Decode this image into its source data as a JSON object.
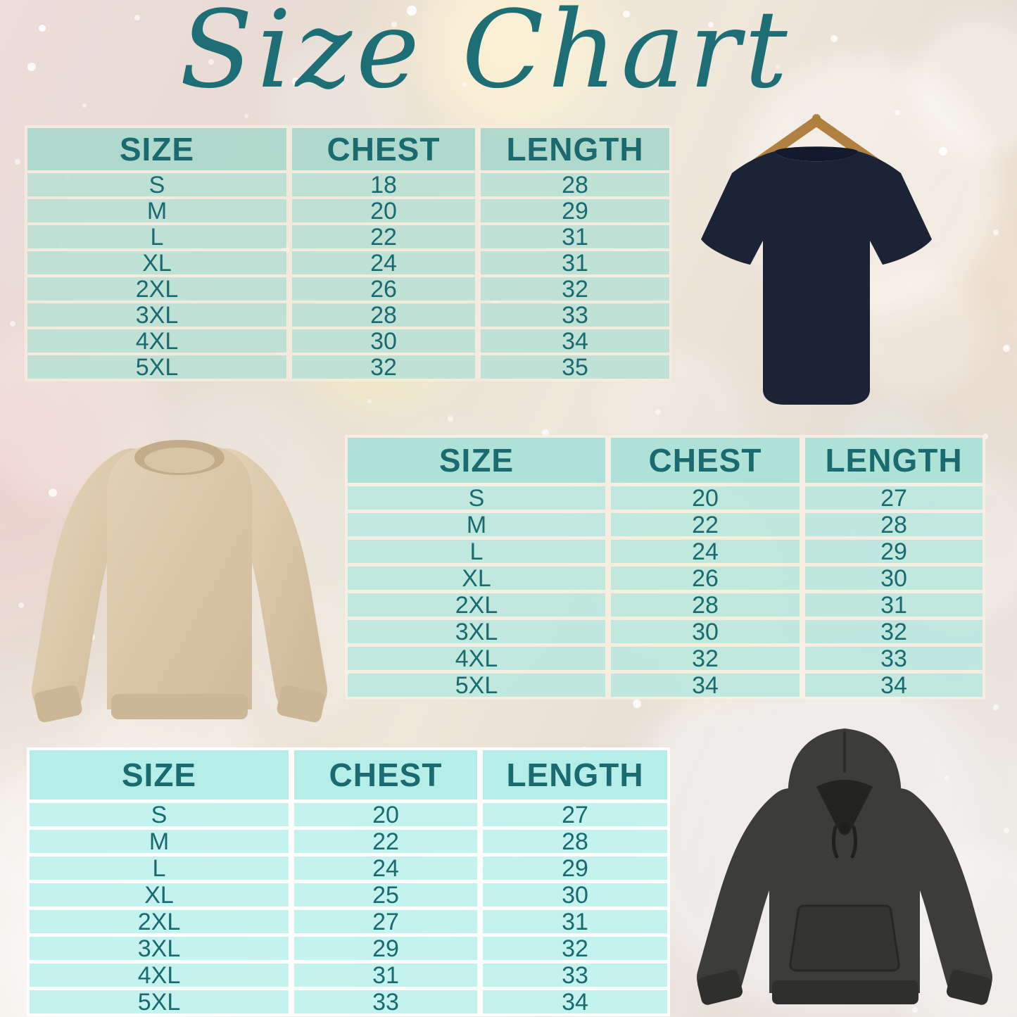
{
  "title": "Size Chart",
  "colors": {
    "accent-teal": "#1E6F75",
    "table-text": "#1A6A70",
    "t1-header-bg": "rgba(158,213,199,0.80)",
    "t1-row-bg": "rgba(167,219,209,0.68)",
    "t2-header-bg": "rgba(156,222,214,0.80)",
    "t2-row-bg": "rgba(170,228,221,0.72)",
    "t3-header-bg": "rgba(173,235,231,0.90)",
    "t3-row-bg": "rgba(192,241,238,0.95)",
    "tshirt-navy": "#1C2335",
    "tshirt-collar": "#121A2B",
    "hanger-wood": "#B08040",
    "sweatshirt-tan": "#D8C5A6",
    "sweatshirt-rib": "#CBB695",
    "sweatshirt-collar": "#C2AC8A",
    "hoodie-charcoal": "#3C3C3A",
    "hoodie-dark": "#2F2F2D",
    "hoodie-opening": "#232321"
  },
  "tables": [
    {
      "columns": [
        "SIZE",
        "CHEST",
        "LENGTH"
      ],
      "rows": [
        [
          "S",
          "18",
          "28"
        ],
        [
          "M",
          "20",
          "29"
        ],
        [
          "L",
          "22",
          "31"
        ],
        [
          "XL",
          "24",
          "31"
        ],
        [
          "2XL",
          "26",
          "32"
        ],
        [
          "3XL",
          "28",
          "33"
        ],
        [
          "4XL",
          "30",
          "34"
        ],
        [
          "5XL",
          "32",
          "35"
        ]
      ]
    },
    {
      "columns": [
        "SIZE",
        "CHEST",
        "LENGTH"
      ],
      "rows": [
        [
          "S",
          "20",
          "27"
        ],
        [
          "M",
          "22",
          "28"
        ],
        [
          "L",
          "24",
          "29"
        ],
        [
          "XL",
          "26",
          "30"
        ],
        [
          "2XL",
          "28",
          "31"
        ],
        [
          "3XL",
          "30",
          "32"
        ],
        [
          "4XL",
          "32",
          "33"
        ],
        [
          "5XL",
          "34",
          "34"
        ]
      ]
    },
    {
      "columns": [
        "SIZE",
        "CHEST",
        "LENGTH"
      ],
      "rows": [
        [
          "S",
          "20",
          "27"
        ],
        [
          "M",
          "22",
          "28"
        ],
        [
          "L",
          "24",
          "29"
        ],
        [
          "XL",
          "25",
          "30"
        ],
        [
          "2XL",
          "27",
          "31"
        ],
        [
          "3XL",
          "29",
          "32"
        ],
        [
          "4XL",
          "31",
          "33"
        ],
        [
          "5XL",
          "33",
          "34"
        ]
      ]
    }
  ],
  "images": [
    {
      "name": "navy-tshirt-on-hanger-image"
    },
    {
      "name": "tan-crewneck-sweatshirt-image"
    },
    {
      "name": "charcoal-hoodie-image"
    }
  ]
}
